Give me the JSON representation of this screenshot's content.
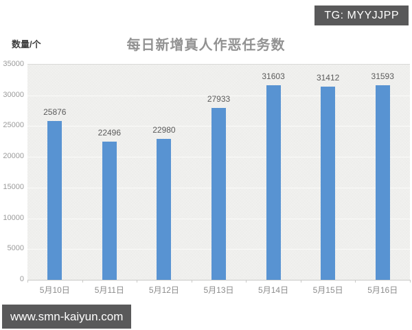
{
  "badge": {
    "text": "TG: MYYJJPP"
  },
  "watermark": {
    "text": "www.smn-kaiyun.com"
  },
  "chart_data": {
    "type": "bar",
    "title": "每日新增真人作恶任务数",
    "ylabel": "数量/个",
    "xlabel": "",
    "categories": [
      "5月10日",
      "5月11日",
      "5月12日",
      "5月13日",
      "5月14日",
      "5月15日",
      "5月16日"
    ],
    "values": [
      25876,
      22496,
      22980,
      27933,
      31603,
      31412,
      31593
    ],
    "ylim": [
      0,
      35000
    ],
    "ytick_step": 5000,
    "grid": true,
    "legend": false,
    "bar_color": "#5893d2",
    "plot_background": "#f1f1ef"
  }
}
